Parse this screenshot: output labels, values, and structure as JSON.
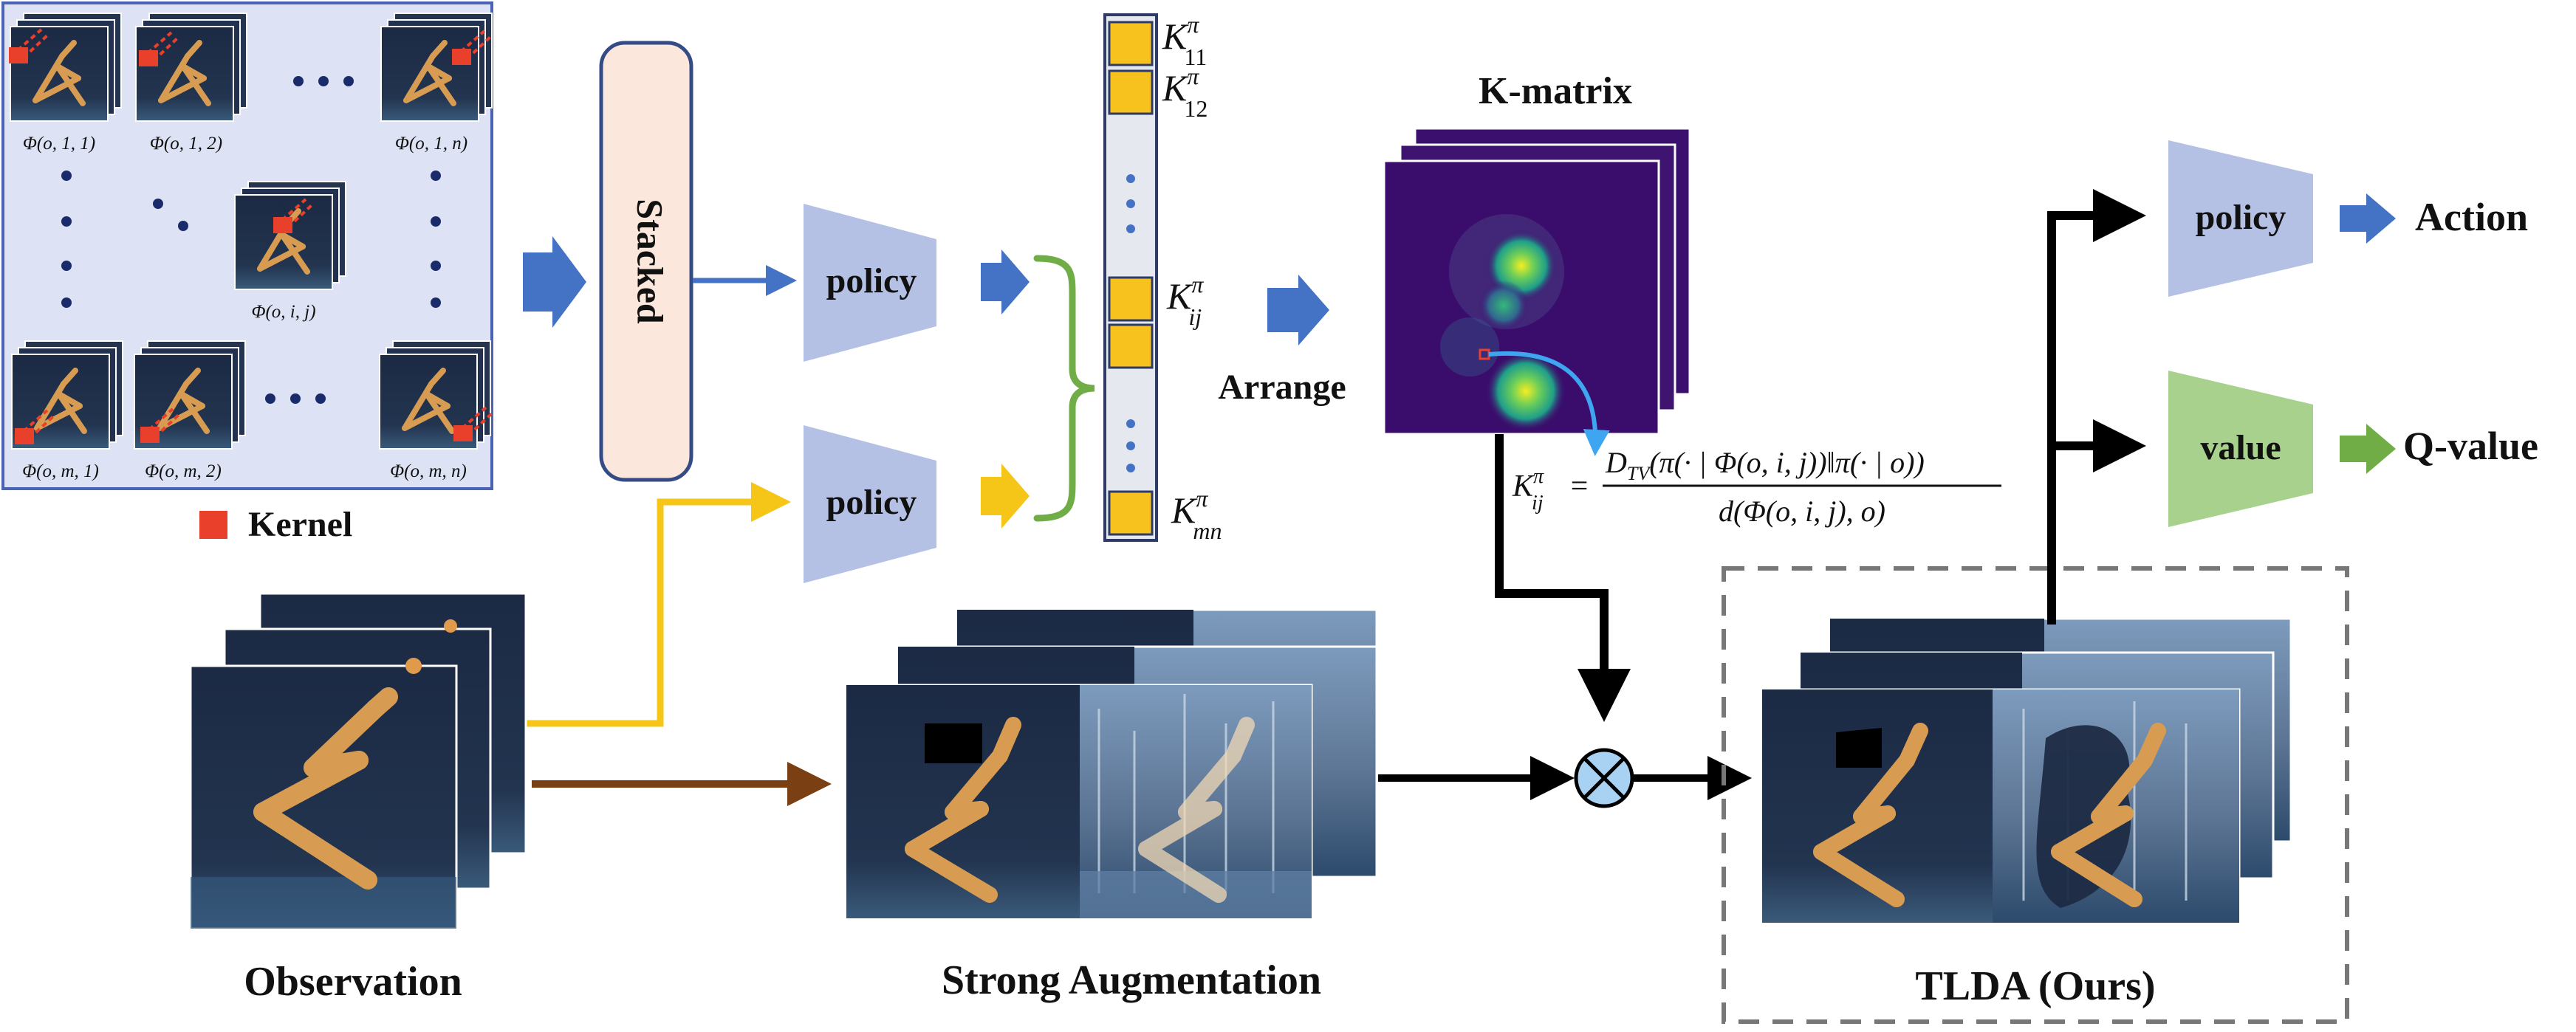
{
  "grid": {
    "cells": {
      "c11": "Φ(o, 1, 1)",
      "c12": "Φ(o, 1, 2)",
      "c1n": "Φ(o, 1, n)",
      "cij": "Φ(o, i, j)",
      "cm1": "Φ(o, m, 1)",
      "cm2": "Φ(o, m, 2)",
      "cmn": "Φ(o, m, n)"
    },
    "kernel_label": "Kernel"
  },
  "stacked_label": "Stacked",
  "policy_labels": {
    "top": "policy",
    "bottom": "policy",
    "right": "policy"
  },
  "kvec": {
    "k11": {
      "base": "K",
      "sup": "π",
      "sub": "11"
    },
    "k12": {
      "base": "K",
      "sup": "π",
      "sub": "12"
    },
    "kij": {
      "base": "K",
      "sup": "π",
      "sub": "ij"
    },
    "kmn": {
      "base": "K",
      "sup": "π",
      "sub": "mn"
    }
  },
  "arrange_label": "Arrange",
  "kmatrix_title": "K-matrix",
  "formula": {
    "lhs": "K",
    "lhs_sup": "π",
    "lhs_sub": "ij",
    "equals": "=",
    "numerator": "D",
    "numerator_sub": "TV",
    "numerator_rest": "(π(· | Φ(o, i, j))‖π(· | o))",
    "denominator": "d(Φ(o, i, j), o)"
  },
  "outputs": {
    "action": "Action",
    "value_net": "value",
    "qvalue": "Q-value"
  },
  "section_labels": {
    "observation": "Observation",
    "strong_aug": "Strong Augmentation",
    "tlda": "TLDA (Ours)"
  },
  "colors": {
    "grid_bg": "#dde3f5",
    "grid_border": "#4a63b5",
    "stacked_fill": "#fbe7dc",
    "stacked_border": "#344b86",
    "policy_fill": "#b4c1e4",
    "value_fill": "#a9d18e",
    "blue_arrow": "#4472c4",
    "yellow": "#f5c518",
    "brown": "#7b3f14",
    "green_brace": "#70ad47",
    "kernel_red": "#e8402a",
    "scene_dark": "#1e2b45",
    "kmatrix_bg": "#3b0f6e",
    "highlight_blue": "#3ea6f0"
  }
}
